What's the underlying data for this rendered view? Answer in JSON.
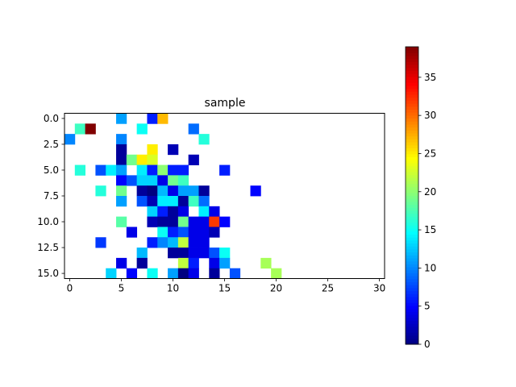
{
  "chart_data": {
    "type": "heatmap",
    "title": "sample",
    "xlabel": "",
    "ylabel": "",
    "n_cols": 31,
    "n_rows": 16,
    "xlim": [
      -0.5,
      30.5
    ],
    "ylim": [
      15.5,
      -0.5
    ],
    "x_ticks": [
      0,
      5,
      10,
      15,
      20,
      25,
      30
    ],
    "x_tick_labels": [
      "0",
      "5",
      "10",
      "15",
      "20",
      "25",
      "30"
    ],
    "y_ticks": [
      0,
      2.5,
      5,
      7.5,
      10,
      12.5,
      15
    ],
    "y_tick_labels": [
      "0.0",
      "2.5",
      "5.0",
      "7.5",
      "10.0",
      "12.5",
      "15.0"
    ],
    "colormap": "jet",
    "color_range": [
      0,
      39
    ],
    "colorbar_ticks": [
      0,
      5,
      10,
      15,
      20,
      25,
      30,
      35
    ],
    "colorbar_tick_labels": [
      "0",
      "5",
      "10",
      "15",
      "20",
      "25",
      "30",
      "35"
    ],
    "empty_value_color": "#ffffff",
    "cells": [
      [
        0,
        5,
        11
      ],
      [
        0,
        8,
        6
      ],
      [
        0,
        9,
        27
      ],
      [
        1,
        1,
        17
      ],
      [
        1,
        2,
        39
      ],
      [
        1,
        7,
        15
      ],
      [
        1,
        12,
        9
      ],
      [
        2,
        0,
        10
      ],
      [
        2,
        5,
        10
      ],
      [
        2,
        13,
        16
      ],
      [
        3,
        5,
        1
      ],
      [
        3,
        8,
        25
      ],
      [
        3,
        10,
        2
      ],
      [
        4,
        5,
        1
      ],
      [
        4,
        6,
        19
      ],
      [
        4,
        7,
        25
      ],
      [
        4,
        8,
        23
      ],
      [
        4,
        12,
        2
      ],
      [
        5,
        1,
        16
      ],
      [
        5,
        3,
        8
      ],
      [
        5,
        4,
        14
      ],
      [
        5,
        5,
        11
      ],
      [
        5,
        7,
        14
      ],
      [
        5,
        8,
        6
      ],
      [
        5,
        9,
        20
      ],
      [
        5,
        10,
        6
      ],
      [
        5,
        11,
        6
      ],
      [
        5,
        15,
        6
      ],
      [
        6,
        5,
        5
      ],
      [
        6,
        6,
        8
      ],
      [
        6,
        7,
        13
      ],
      [
        6,
        8,
        13
      ],
      [
        6,
        9,
        4
      ],
      [
        6,
        10,
        19
      ],
      [
        6,
        11,
        17
      ],
      [
        7,
        3,
        16
      ],
      [
        7,
        5,
        19
      ],
      [
        7,
        7,
        1
      ],
      [
        7,
        8,
        0
      ],
      [
        7,
        9,
        12
      ],
      [
        7,
        10,
        4
      ],
      [
        7,
        11,
        11
      ],
      [
        7,
        12,
        11
      ],
      [
        7,
        13,
        1
      ],
      [
        7,
        18,
        5
      ],
      [
        8,
        5,
        11
      ],
      [
        8,
        7,
        8
      ],
      [
        8,
        8,
        2
      ],
      [
        8,
        9,
        14
      ],
      [
        8,
        10,
        14
      ],
      [
        8,
        11,
        1
      ],
      [
        8,
        12,
        17
      ],
      [
        8,
        13,
        9
      ],
      [
        9,
        8,
        13
      ],
      [
        9,
        9,
        6
      ],
      [
        9,
        10,
        1
      ],
      [
        9,
        11,
        4
      ],
      [
        9,
        13,
        14
      ],
      [
        9,
        14,
        4
      ],
      [
        10,
        5,
        18
      ],
      [
        10,
        8,
        2
      ],
      [
        10,
        9,
        1
      ],
      [
        10,
        10,
        1
      ],
      [
        10,
        11,
        19
      ],
      [
        10,
        12,
        4
      ],
      [
        10,
        13,
        4
      ],
      [
        10,
        14,
        32
      ],
      [
        10,
        15,
        5
      ],
      [
        11,
        6,
        4
      ],
      [
        11,
        9,
        15
      ],
      [
        11,
        10,
        6
      ],
      [
        11,
        11,
        8
      ],
      [
        11,
        12,
        4
      ],
      [
        11,
        13,
        4
      ],
      [
        11,
        14,
        2
      ],
      [
        12,
        3,
        7
      ],
      [
        12,
        8,
        6
      ],
      [
        12,
        9,
        10
      ],
      [
        12,
        10,
        12
      ],
      [
        12,
        11,
        22
      ],
      [
        12,
        12,
        4
      ],
      [
        12,
        13,
        4
      ],
      [
        13,
        7,
        12
      ],
      [
        13,
        10,
        1
      ],
      [
        13,
        11,
        1
      ],
      [
        13,
        12,
        4
      ],
      [
        13,
        13,
        4
      ],
      [
        13,
        14,
        8
      ],
      [
        13,
        15,
        15
      ],
      [
        14,
        5,
        4
      ],
      [
        14,
        7,
        1
      ],
      [
        14,
        11,
        22
      ],
      [
        14,
        12,
        6
      ],
      [
        14,
        14,
        4
      ],
      [
        14,
        15,
        11
      ],
      [
        14,
        19,
        21
      ],
      [
        15,
        4,
        13
      ],
      [
        15,
        6,
        5
      ],
      [
        15,
        8,
        15
      ],
      [
        15,
        10,
        11
      ],
      [
        15,
        11,
        0
      ],
      [
        15,
        12,
        4
      ],
      [
        15,
        14,
        1
      ],
      [
        15,
        16,
        8
      ],
      [
        15,
        20,
        21
      ]
    ]
  }
}
